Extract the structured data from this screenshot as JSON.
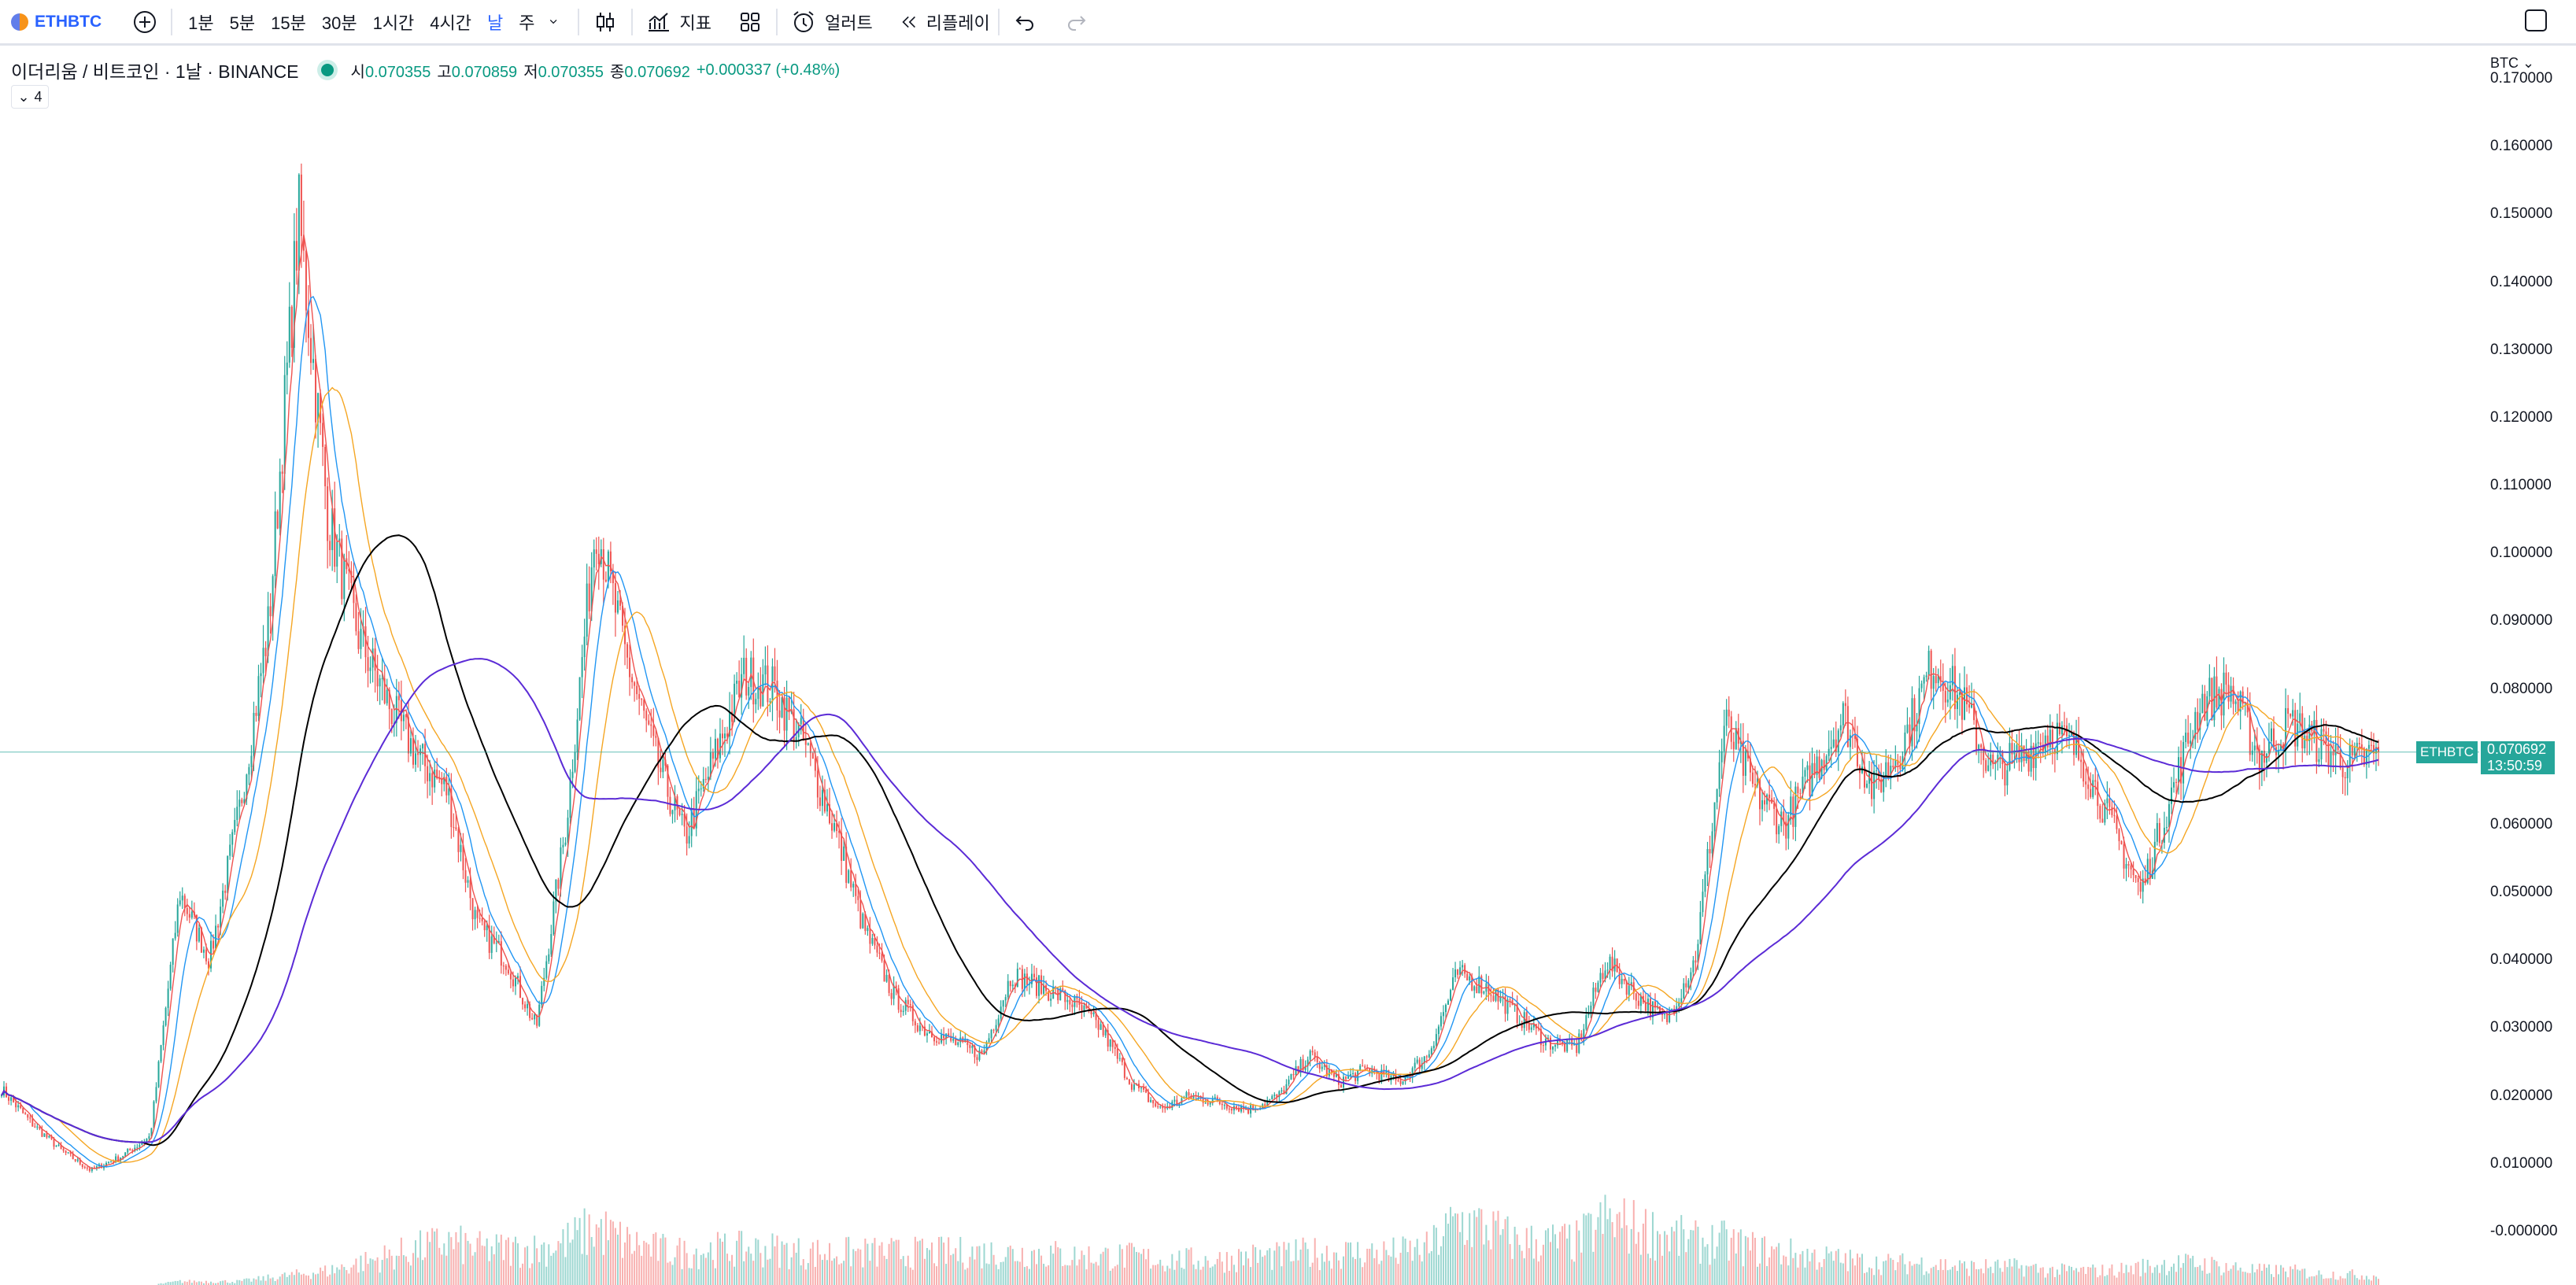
{
  "toolbar": {
    "symbol": "ETHBTC",
    "intervals": [
      "1분",
      "5분",
      "15분",
      "30분",
      "1시간",
      "4시간",
      "날",
      "주"
    ],
    "active_interval": "날",
    "indicators_label": "지표",
    "alert_label": "얼러트",
    "replay_label": "리플레이"
  },
  "legend": {
    "title": "이더리움 / 비트코인 · 1날 · BINANCE",
    "open_label": "시",
    "open": "0.070355",
    "high_label": "고",
    "high": "0.070859",
    "low_label": "저",
    "low": "0.070355",
    "close_label": "종",
    "close": "0.070692",
    "change": "+0.000337 (+0.48%)",
    "collapse_count": "4"
  },
  "axis": {
    "currency": "BTC",
    "ticks": [
      "0.170000",
      "0.160000",
      "0.150000",
      "0.140000",
      "0.130000",
      "0.120000",
      "0.110000",
      "0.100000",
      "0.090000",
      "0.080000",
      "0.070000",
      "0.060000",
      "0.050000",
      "0.040000",
      "0.030000",
      "0.020000",
      "0.010000",
      "-0.000000"
    ]
  },
  "last_price": {
    "symbol": "ETHBTC",
    "value": "0.070692",
    "countdown": "13:50:59"
  },
  "colors": {
    "up": "#26a69a",
    "down": "#ef5350",
    "ma1": "#ef5350",
    "ma2": "#2196f3",
    "ma3": "#f5a623",
    "ma4": "#000000",
    "ma5": "#5b2bd6"
  },
  "chart_data": {
    "type": "candlestick",
    "symbol": "ETHBTC",
    "ylim": [
      0.0,
      0.17
    ],
    "grid": false,
    "price_anchors": [
      0.021,
      0.016,
      0.012,
      0.009,
      0.011,
      0.014,
      0.05,
      0.04,
      0.062,
      0.09,
      0.15,
      0.105,
      0.088,
      0.078,
      0.07,
      0.065,
      0.045,
      0.04,
      0.03,
      0.06,
      0.105,
      0.085,
      0.07,
      0.058,
      0.07,
      0.082,
      0.08,
      0.072,
      0.06,
      0.045,
      0.035,
      0.03,
      0.028,
      0.026,
      0.038,
      0.036,
      0.034,
      0.03,
      0.022,
      0.018,
      0.02,
      0.019,
      0.018,
      0.02,
      0.026,
      0.022,
      0.024,
      0.022,
      0.026,
      0.038,
      0.036,
      0.032,
      0.028,
      0.027,
      0.04,
      0.035,
      0.031,
      0.04,
      0.075,
      0.065,
      0.06,
      0.068,
      0.076,
      0.065,
      0.072,
      0.084,
      0.078,
      0.068,
      0.07,
      0.074,
      0.07,
      0.06,
      0.05,
      0.064,
      0.078,
      0.08,
      0.07,
      0.075,
      0.072,
      0.069,
      0.0707
    ],
    "volume_anchors": [
      0.0,
      0.0,
      0.0,
      0.0,
      0.0,
      0.0,
      0.05,
      0.05,
      0.05,
      0.1,
      0.15,
      0.2,
      0.3,
      0.4,
      0.5,
      0.6,
      0.5,
      0.5,
      0.5,
      0.6,
      0.8,
      0.6,
      0.5,
      0.45,
      0.5,
      0.5,
      0.5,
      0.45,
      0.45,
      0.45,
      0.45,
      0.45,
      0.45,
      0.45,
      0.45,
      0.45,
      0.4,
      0.4,
      0.4,
      0.35,
      0.35,
      0.35,
      0.4,
      0.4,
      0.45,
      0.45,
      0.45,
      0.45,
      0.5,
      0.9,
      0.8,
      0.6,
      0.6,
      0.6,
      0.9,
      0.8,
      0.7,
      0.6,
      0.6,
      0.5,
      0.45,
      0.4,
      0.35,
      0.3,
      0.3,
      0.3,
      0.25,
      0.25,
      0.25,
      0.2,
      0.2,
      0.2,
      0.25,
      0.3,
      0.3,
      0.25,
      0.2,
      0.2,
      0.15,
      0.15,
      0.12
    ],
    "candles": 1000,
    "moving_averages": 5
  }
}
